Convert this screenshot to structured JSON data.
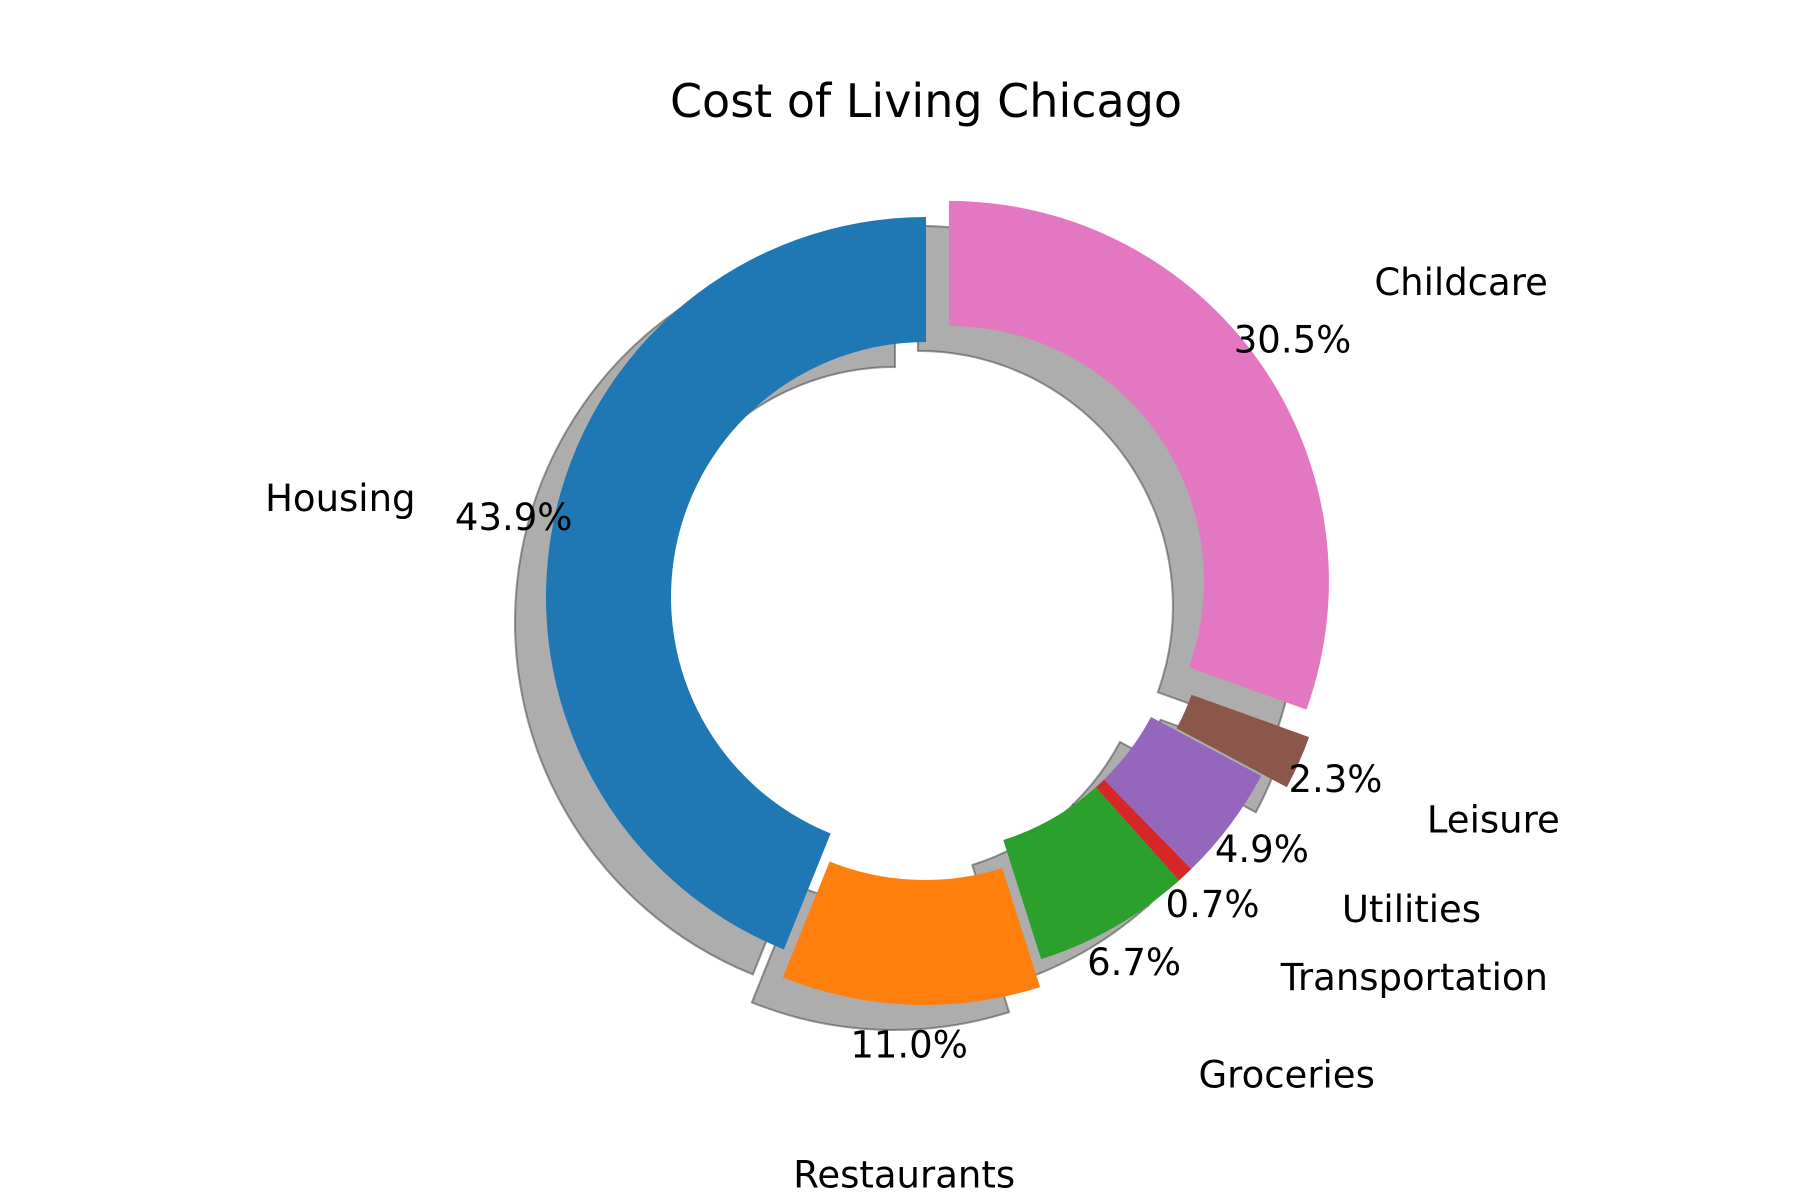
{
  "chart_data": {
    "type": "pie",
    "title": "Cost of Living Chicago",
    "donut": true,
    "shadow": true,
    "slices": [
      {
        "label": "Housing",
        "value": 43.9,
        "pct_label": "43.9%",
        "color": "#1f77b4",
        "exploded": false
      },
      {
        "label": "Restaurants",
        "value": 11.0,
        "pct_label": "11.0%",
        "color": "#ff7f0e",
        "exploded": true
      },
      {
        "label": "Groceries",
        "value": 6.7,
        "pct_label": "6.7%",
        "color": "#2ca02c",
        "exploded": false
      },
      {
        "label": "Transportation",
        "value": 0.7,
        "pct_label": "0.7%",
        "color": "#d62728",
        "exploded": false
      },
      {
        "label": "Utilities",
        "value": 4.9,
        "pct_label": "4.9%",
        "color": "#9467bd",
        "exploded": false
      },
      {
        "label": "Leisure",
        "value": 2.3,
        "pct_label": "2.3%",
        "color": "#8c564b",
        "exploded": true
      },
      {
        "label": "Childcare",
        "value": 30.5,
        "pct_label": "30.5%",
        "color": "#e377c2",
        "exploded": true
      }
    ]
  }
}
